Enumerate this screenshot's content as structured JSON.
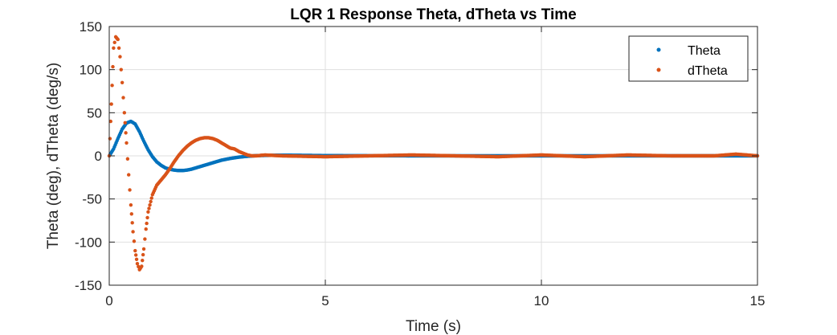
{
  "chart_data": {
    "type": "scatter",
    "title": "LQR 1 Response  Theta, dTheta vs Time",
    "xlabel": "Time (s)",
    "ylabel": "Theta (deg), dTheta (deg/s)",
    "xlim": [
      0,
      15
    ],
    "ylim": [
      -150,
      150
    ],
    "xticks": [
      0,
      5,
      10,
      15
    ],
    "yticks": [
      -150,
      -100,
      -50,
      0,
      50,
      100,
      150
    ],
    "xtick_labels": [
      "0",
      "5",
      "10",
      "15"
    ],
    "ytick_labels": [
      "-150",
      "-100",
      "-50",
      "0",
      "50",
      "100",
      "150"
    ],
    "grid": true,
    "legend": "top-right",
    "colors": {
      "Theta": "#0072BD",
      "dTheta": "#D95319"
    },
    "series": [
      {
        "name": "Theta",
        "color": "#0072BD",
        "x": [
          0,
          0.1,
          0.2,
          0.3,
          0.4,
          0.5,
          0.6,
          0.7,
          0.8,
          0.9,
          1.0,
          1.1,
          1.2,
          1.3,
          1.4,
          1.5,
          1.6,
          1.7,
          1.8,
          1.9,
          2.0,
          2.2,
          2.4,
          2.6,
          2.8,
          3.0,
          3.2,
          3.4,
          3.6,
          4.0,
          5.0,
          6.0,
          7.0,
          8.0,
          9.0,
          10.0,
          11.0,
          12.0,
          13.0,
          14.0,
          15.0
        ],
        "y": [
          0,
          8,
          20,
          31,
          38,
          40,
          37,
          28,
          17,
          7,
          -1,
          -7,
          -11,
          -14,
          -15.5,
          -16.5,
          -17,
          -17,
          -16.5,
          -15.5,
          -14,
          -11,
          -8,
          -5,
          -3,
          -1.5,
          -0.5,
          0.2,
          0.5,
          0.8,
          0.3,
          0.1,
          0,
          0,
          0,
          0,
          0,
          0,
          0,
          0,
          0
        ]
      },
      {
        "name": "dTheta",
        "color": "#D95319",
        "x": [
          0,
          0.05,
          0.1,
          0.15,
          0.2,
          0.25,
          0.3,
          0.35,
          0.4,
          0.45,
          0.5,
          0.55,
          0.6,
          0.65,
          0.7,
          0.75,
          0.8,
          0.85,
          0.9,
          1.0,
          1.1,
          1.2,
          1.3,
          1.4,
          1.5,
          1.6,
          1.7,
          1.8,
          1.9,
          2.0,
          2.1,
          2.2,
          2.3,
          2.4,
          2.5,
          2.6,
          2.7,
          2.8,
          2.9,
          3.0,
          3.1,
          3.2,
          3.3,
          3.4,
          3.6,
          4.0,
          5.0,
          6.0,
          7.0,
          8.0,
          9.0,
          10.0,
          11.0,
          12.0,
          13.0,
          14.0,
          14.5,
          15.0
        ],
        "y": [
          0,
          60,
          125,
          138,
          135,
          115,
          85,
          50,
          15,
          -22,
          -57,
          -88,
          -110,
          -125,
          -132,
          -128,
          -108,
          -85,
          -65,
          -45,
          -34,
          -28,
          -22,
          -15,
          -7,
          0,
          6,
          11,
          15,
          18,
          20,
          21,
          21,
          20,
          18,
          15,
          12,
          9,
          8,
          5,
          3,
          1,
          0,
          0,
          1,
          0,
          -1,
          0,
          1,
          0,
          -1,
          1,
          -1,
          1,
          0,
          0,
          2,
          0
        ]
      }
    ]
  }
}
